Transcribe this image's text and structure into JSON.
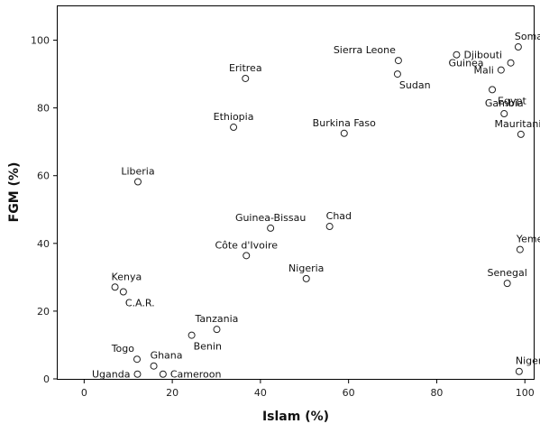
{
  "chart_data": {
    "type": "scatter",
    "title": "",
    "xlabel": "Islam (%)",
    "ylabel": "FGM (%)",
    "xlim": [
      -6,
      102
    ],
    "ylim": [
      0,
      110
    ],
    "xticks": [
      0,
      20,
      40,
      60,
      80,
      100
    ],
    "yticks": [
      0,
      20,
      40,
      60,
      80,
      100
    ],
    "grid": false,
    "legend": "none",
    "colors": {
      "marker_stroke": "#222222",
      "marker_fill": "#ffffff",
      "axis": "#000000"
    },
    "points": [
      {
        "label": "Somalia",
        "x": 98.5,
        "y": 98,
        "label_pos": "top-right"
      },
      {
        "label": "Sierra Leone",
        "x": 71.3,
        "y": 94,
        "label_pos": "top-left"
      },
      {
        "label": "Djibouti",
        "x": 84.5,
        "y": 95.7,
        "label_pos": "right"
      },
      {
        "label": "Guinea",
        "x": 96.8,
        "y": 93.3,
        "label_pos": "far-left"
      },
      {
        "label": "Mali",
        "x": 94.6,
        "y": 91.2,
        "label_pos": "left"
      },
      {
        "label": "Egypt",
        "x": 92.6,
        "y": 85.4,
        "label_pos": "right-below"
      },
      {
        "label": "Sudan",
        "x": 71.1,
        "y": 90.0,
        "label_pos": "bottom-right"
      },
      {
        "label": "Eritrea",
        "x": 36.6,
        "y": 88.7,
        "label_pos": "top"
      },
      {
        "label": "Gambia",
        "x": 95.3,
        "y": 78.3,
        "label_pos": "top"
      },
      {
        "label": "Ethiopia",
        "x": 33.9,
        "y": 74.3,
        "label_pos": "top"
      },
      {
        "label": "Burkina Faso",
        "x": 59.0,
        "y": 72.5,
        "label_pos": "top"
      },
      {
        "label": "Mauritania",
        "x": 99.1,
        "y": 72.2,
        "label_pos": "top"
      },
      {
        "label": "Liberia",
        "x": 12.2,
        "y": 58.2,
        "label_pos": "top"
      },
      {
        "label": "Guinea-Bissau",
        "x": 42.3,
        "y": 44.5,
        "label_pos": "top"
      },
      {
        "label": "Chad",
        "x": 55.7,
        "y": 45.0,
        "label_pos": "top-right"
      },
      {
        "label": "Côte d'Ivoire",
        "x": 36.8,
        "y": 36.4,
        "label_pos": "top"
      },
      {
        "label": "Yemen",
        "x": 98.9,
        "y": 38.2,
        "label_pos": "top-right"
      },
      {
        "label": "Nigeria",
        "x": 50.4,
        "y": 29.6,
        "label_pos": "top"
      },
      {
        "label": "Senegal",
        "x": 96.0,
        "y": 28.2,
        "label_pos": "top"
      },
      {
        "label": "Kenya",
        "x": 7.0,
        "y": 27.1,
        "label_pos": "top-right"
      },
      {
        "label": "C.A.R.",
        "x": 8.9,
        "y": 25.7,
        "label_pos": "bottom-right"
      },
      {
        "label": "Tanzania",
        "x": 30.1,
        "y": 14.6,
        "label_pos": "top"
      },
      {
        "label": "Benin",
        "x": 24.4,
        "y": 12.9,
        "label_pos": "bottom-right"
      },
      {
        "label": "Togo",
        "x": 12.0,
        "y": 5.8,
        "label_pos": "top-left"
      },
      {
        "label": "Ghana",
        "x": 15.8,
        "y": 3.8,
        "label_pos": "top-right"
      },
      {
        "label": "Uganda",
        "x": 12.1,
        "y": 1.4,
        "label_pos": "left"
      },
      {
        "label": "Cameroon",
        "x": 17.9,
        "y": 1.4,
        "label_pos": "right"
      },
      {
        "label": "Niger",
        "x": 98.7,
        "y": 2.2,
        "label_pos": "top-right"
      }
    ]
  }
}
